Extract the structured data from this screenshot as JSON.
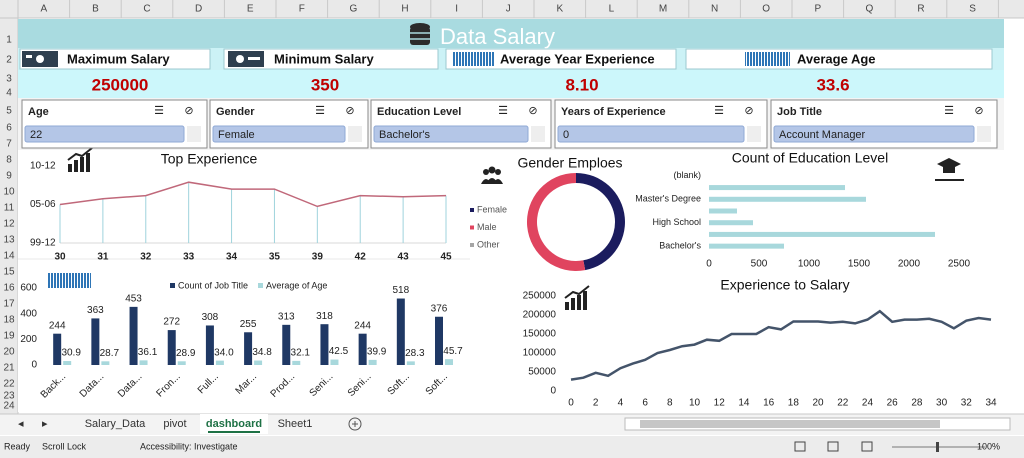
{
  "ui": {
    "columns": [
      "A",
      "B",
      "C",
      "D",
      "E",
      "F",
      "G",
      "H",
      "I",
      "J",
      "K",
      "L",
      "M",
      "N",
      "O",
      "P",
      "Q",
      "R",
      "S"
    ],
    "rows": [
      1,
      2,
      3,
      4,
      5,
      6,
      7,
      8,
      9,
      10,
      11,
      12,
      13,
      14,
      15,
      16,
      17,
      18,
      19,
      20,
      21,
      22,
      23,
      24
    ],
    "sheets": [
      "Salary_Data",
      "pivot",
      "dashboard",
      "Sheet1"
    ],
    "active_sheet": 2,
    "status": [
      "Ready",
      "Scroll Lock",
      "Accessibility: Investigate"
    ],
    "zoom": "100%"
  },
  "dashboard": {
    "title": "Data Salary",
    "kpis": [
      {
        "label": "Maximum Salary",
        "value": "250000"
      },
      {
        "label": "Minimum Salary",
        "value": "350"
      },
      {
        "label": "Average  Year Experience",
        "value": "8.10"
      },
      {
        "label": "Average Age",
        "value": "33.6"
      }
    ],
    "slicers": [
      {
        "title": "Age",
        "selected": "22"
      },
      {
        "title": "Gender",
        "selected": "Female"
      },
      {
        "title": "Education Level",
        "selected": "Bachelor's"
      },
      {
        "title": "Years of Experience",
        "selected": "0"
      },
      {
        "title": "Job Title",
        "selected": "Account Manager"
      }
    ]
  },
  "chart_data": [
    {
      "type": "line",
      "title": "Top Experience",
      "categories": [
        30,
        31,
        32,
        33,
        34,
        35,
        39,
        42,
        43,
        45
      ],
      "values": [
        1.0,
        1.15,
        1.23,
        1.58,
        1.4,
        1.4,
        0.95,
        1.23,
        1.2,
        1.23
      ],
      "ylim": [
        0,
        2
      ],
      "yticks": [
        {
          "value": 0,
          "label": "99-12"
        },
        {
          "value": 1,
          "label": "05-06"
        },
        {
          "value": 2,
          "label": "10-12"
        }
      ],
      "color": "#c0687a",
      "drop_color": "#9fd3dc"
    },
    {
      "type": "pie",
      "title": "Gender Emploes",
      "categories": [
        "Female",
        "Male",
        "Other"
      ],
      "values": [
        47,
        53,
        0
      ],
      "colors": [
        "#1b1c5e",
        "#e0445f",
        "#a5a5a5"
      ],
      "legend": "left"
    },
    {
      "type": "bar",
      "orientation": "horizontal",
      "title": "Count of Education Level",
      "categories": [
        "(blank)",
        null,
        "Master's Degree",
        null,
        "High School",
        null,
        "Bachelor's"
      ],
      "values": [
        0,
        1360,
        1570,
        280,
        440,
        2260,
        750
      ],
      "color": "#a8d8dc",
      "xlim": [
        0,
        2500
      ],
      "xticks": [
        0,
        500,
        1000,
        1500,
        2000,
        2500
      ]
    },
    {
      "type": "bar",
      "orientation": "vertical",
      "categories": [
        "Back...",
        "Data...",
        "Data...",
        "Fron...",
        "Full...",
        "Mar...",
        "Prod...",
        "Seni...",
        "Seni...",
        "Soft...",
        "Soft..."
      ],
      "series": [
        {
          "name": "Count of Job Title",
          "color": "#1f3864",
          "values": [
            244,
            363,
            453,
            272,
            308,
            255,
            313,
            318,
            244,
            518,
            376
          ]
        },
        {
          "name": "Average of Age",
          "color": "#a8d8dc",
          "values": [
            30.9,
            28.7,
            36.1,
            28.9,
            34.0,
            34.8,
            32.1,
            42.5,
            39.9,
            28.3,
            45.7
          ],
          "value_labels": [
            "30.9",
            "28.7",
            "36.1",
            "28.9",
            "34.0",
            "34.8",
            "32.1",
            "42.5",
            "39.9",
            "28.3",
            "45.7"
          ]
        }
      ],
      "ylim": [
        0,
        600
      ],
      "yticks": [
        0,
        200,
        400,
        600
      ],
      "legend": "top"
    },
    {
      "type": "line",
      "title": "Experience to Salary",
      "x": [
        0,
        1,
        2,
        3,
        4,
        5,
        6,
        7,
        8,
        9,
        10,
        11,
        12,
        13,
        14,
        15,
        16,
        17,
        18,
        19,
        20,
        21,
        22,
        23,
        24,
        25,
        26,
        27,
        28,
        29,
        30,
        31,
        32,
        33,
        34
      ],
      "values": [
        30000,
        35000,
        48000,
        40000,
        60000,
        72000,
        82000,
        100000,
        108000,
        118000,
        122000,
        135000,
        132000,
        150000,
        150000,
        150000,
        168000,
        162000,
        183000,
        183000,
        183000,
        180000,
        182000,
        178000,
        188000,
        210000,
        182000,
        188000,
        188000,
        190000,
        182000,
        165000,
        185000,
        192000,
        188000
      ],
      "xlim": [
        0,
        34
      ],
      "xticks": [
        0,
        2,
        4,
        6,
        8,
        10,
        12,
        14,
        16,
        18,
        20,
        22,
        24,
        26,
        28,
        30,
        32,
        34
      ],
      "ylim": [
        0,
        250000
      ],
      "yticks": [
        0,
        50000,
        100000,
        150000,
        200000,
        250000
      ],
      "color": "#44546a"
    }
  ]
}
